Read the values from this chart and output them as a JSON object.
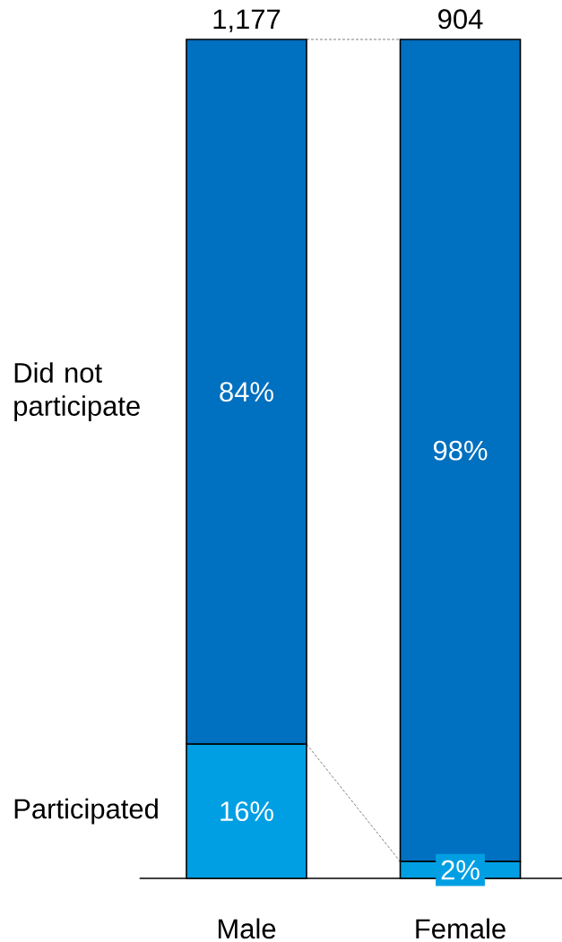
{
  "chart_data": {
    "type": "bar",
    "stacked": true,
    "categories": [
      "Male",
      "Female"
    ],
    "series": [
      {
        "name": "Participated",
        "color": "#009fe3",
        "values": [
          16,
          2
        ],
        "value_labels": [
          "16%",
          "2%"
        ]
      },
      {
        "name": "Did not participate",
        "color": "#0070c0",
        "values": [
          84,
          98
        ],
        "value_labels": [
          "84%",
          "98%"
        ]
      }
    ],
    "annotations": [
      {
        "text": "1,177",
        "x": "Male",
        "y": 100
      },
      {
        "text": "904",
        "x": "Female",
        "y": 100
      }
    ]
  }
}
